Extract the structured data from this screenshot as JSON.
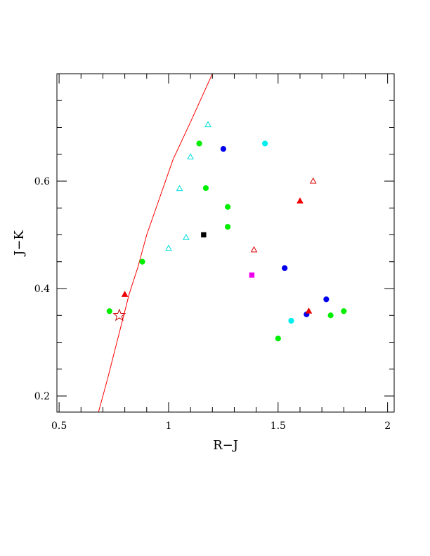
{
  "chart_data": {
    "type": "scatter",
    "title": "",
    "xlabel": "R−J",
    "ylabel": "J−K",
    "xlim": [
      0.49,
      2.03
    ],
    "ylim": [
      0.17,
      0.8
    ],
    "x_major_ticks": [
      0.5,
      1,
      1.5,
      2
    ],
    "x_tick_labels": [
      "0.5",
      "1",
      "1.5",
      "2"
    ],
    "x_minor_step": 0.1,
    "y_major_ticks": [
      0.2,
      0.4,
      0.6
    ],
    "y_tick_labels": [
      "0.2",
      "0.4",
      "0.6"
    ],
    "y_minor_step": 0.05,
    "grid": false,
    "curve": {
      "color": "#ff0000",
      "points": [
        [
          0.68,
          0.17
        ],
        [
          0.72,
          0.23
        ],
        [
          0.77,
          0.31
        ],
        [
          0.82,
          0.39
        ],
        [
          0.86,
          0.44
        ],
        [
          0.9,
          0.5
        ],
        [
          0.96,
          0.57
        ],
        [
          1.02,
          0.64
        ],
        [
          1.1,
          0.71
        ],
        [
          1.2,
          0.8
        ]
      ]
    },
    "series": [
      {
        "marker": "circle",
        "fill": true,
        "color": "#00ee00",
        "points": [
          [
            0.73,
            0.358
          ],
          [
            0.88,
            0.45
          ],
          [
            1.14,
            0.67
          ],
          [
            1.17,
            0.587
          ],
          [
            1.27,
            0.552
          ],
          [
            1.27,
            0.515
          ],
          [
            1.5,
            0.307
          ],
          [
            1.74,
            0.35
          ],
          [
            1.8,
            0.358
          ]
        ]
      },
      {
        "marker": "circle",
        "fill": true,
        "color": "#0000ee",
        "points": [
          [
            1.25,
            0.66
          ],
          [
            1.53,
            0.438
          ],
          [
            1.63,
            0.352
          ],
          [
            1.72,
            0.38
          ]
        ]
      },
      {
        "marker": "circle",
        "fill": true,
        "color": "#00eeee",
        "points": [
          [
            1.44,
            0.67
          ],
          [
            1.56,
            0.34
          ]
        ]
      },
      {
        "marker": "triangle",
        "fill": false,
        "color": "#00dddd",
        "points": [
          [
            1.0,
            0.475
          ],
          [
            1.05,
            0.586
          ],
          [
            1.08,
            0.495
          ],
          [
            1.1,
            0.645
          ],
          [
            1.18,
            0.705
          ]
        ]
      },
      {
        "marker": "triangle",
        "fill": false,
        "color": "#dd0000",
        "points": [
          [
            1.39,
            0.472
          ],
          [
            1.66,
            0.6
          ]
        ]
      },
      {
        "marker": "triangle",
        "fill": true,
        "color": "#ee0000",
        "points": [
          [
            0.8,
            0.389
          ],
          [
            1.6,
            0.563
          ],
          [
            1.64,
            0.358
          ]
        ]
      },
      {
        "marker": "square",
        "fill": true,
        "color": "#000000",
        "points": [
          [
            1.16,
            0.5
          ]
        ]
      },
      {
        "marker": "square",
        "fill": true,
        "color": "#ee00ee",
        "points": [
          [
            1.38,
            0.425
          ]
        ]
      },
      {
        "marker": "star",
        "fill": false,
        "color": "#cc0000",
        "points": [
          [
            0.775,
            0.35
          ]
        ]
      }
    ]
  }
}
